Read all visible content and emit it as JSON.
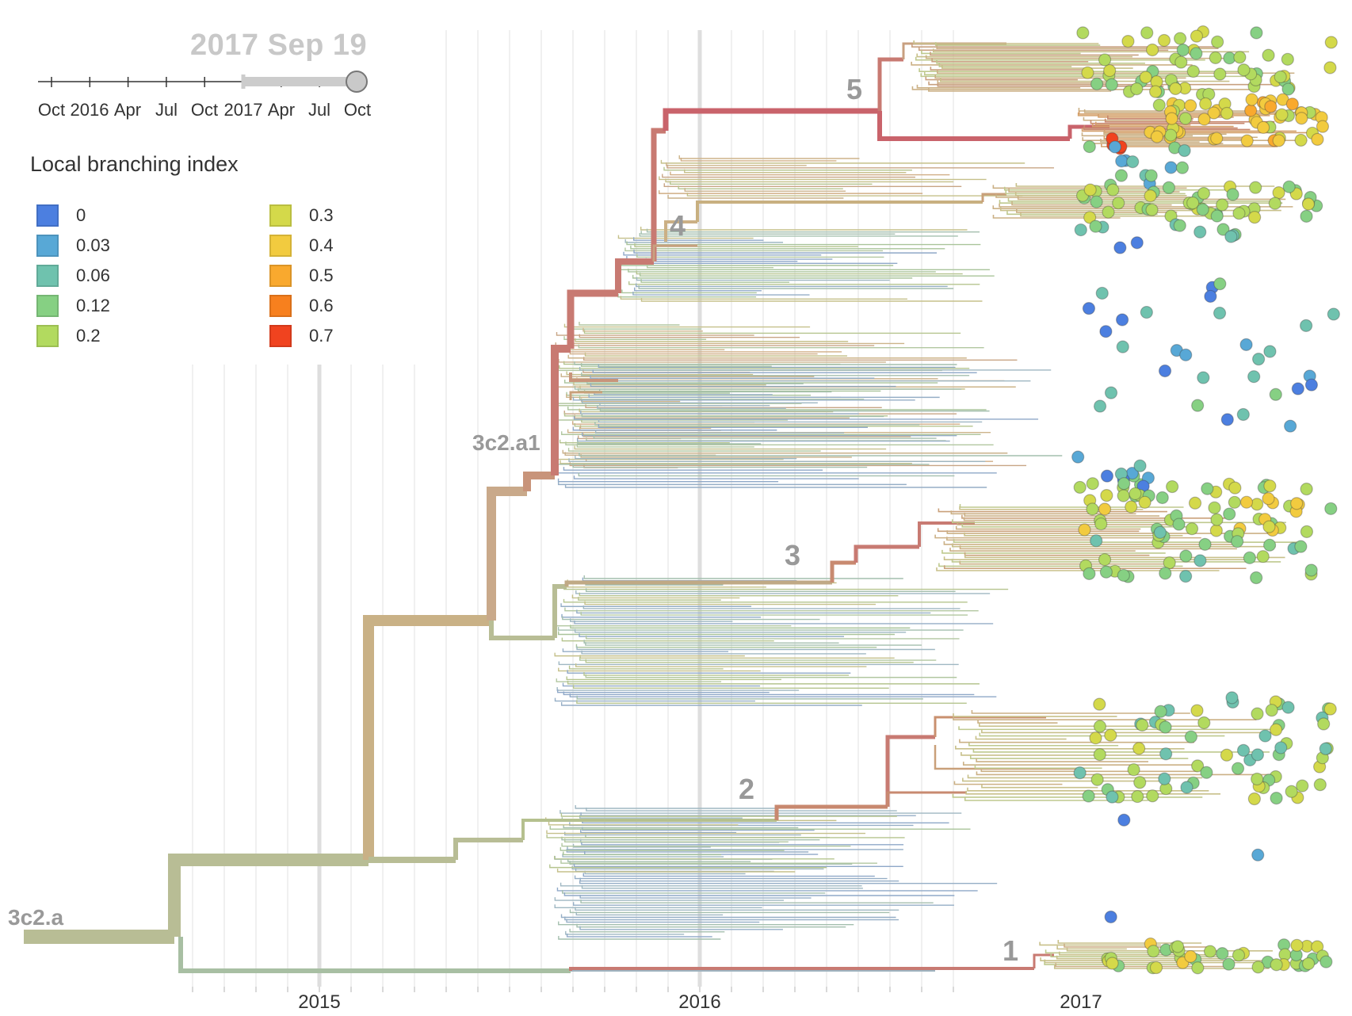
{
  "time_slider": {
    "current_date": "2017 Sep 19",
    "tick_labels": [
      "Oct",
      "2016",
      "Apr",
      "Jul",
      "Oct",
      "2017",
      "Apr",
      "Jul",
      "Oct"
    ]
  },
  "legend": {
    "title": "Local branching index",
    "items": [
      {
        "label": "0",
        "color": "#4C7FE0"
      },
      {
        "label": "0.03",
        "color": "#58A8D6"
      },
      {
        "label": "0.06",
        "color": "#6FC2AE"
      },
      {
        "label": "0.12",
        "color": "#86D083"
      },
      {
        "label": "0.2",
        "color": "#B2DA5F"
      },
      {
        "label": "0.3",
        "color": "#D4D94A"
      },
      {
        "label": "0.4",
        "color": "#F2CB3F"
      },
      {
        "label": "0.5",
        "color": "#F9A92E"
      },
      {
        "label": "0.6",
        "color": "#F7801E"
      },
      {
        "label": "0.7",
        "color": "#F0431F"
      }
    ]
  },
  "x_axis": {
    "labels": [
      "2015",
      "2016",
      "2017"
    ]
  },
  "clade_labels": {
    "root": "3c2.a",
    "sub": "3c2.a1",
    "numbered": [
      "1",
      "2",
      "3",
      "4",
      "5"
    ]
  },
  "colors": {
    "trunk_low": "#B8BD95",
    "trunk_mid": "#C9B186",
    "trunk_high": "#C87A72",
    "trunk_top": "#C9636B",
    "branch_blue": "#8FA8C8",
    "branch_green": "#A9C49A",
    "branch_tan": "#CDB48A"
  }
}
